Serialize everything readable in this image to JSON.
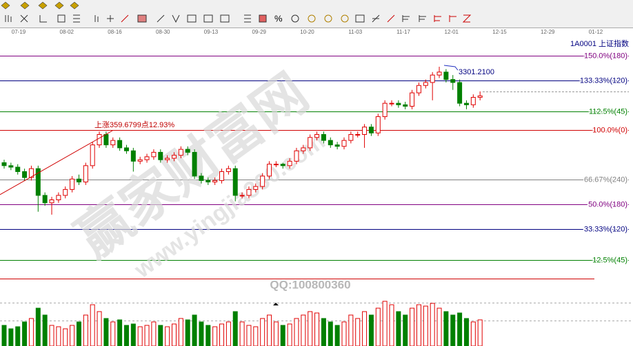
{
  "toolbar": {
    "percent": "%"
  },
  "chart_data": {
    "type": "candlestick",
    "symbol": "1A0001 上证指数",
    "date_labels": [
      "07-19",
      "08-02",
      "08-16",
      "08-30",
      "09-13",
      "09-29",
      "10-20",
      "11-03",
      "11-17",
      "12-01",
      "12-15",
      "12-29",
      "01-12"
    ],
    "ylim": [
      -11.6,
      165.3
    ],
    "up_color": "#e00000",
    "down_color": "#008000",
    "open": [
      78,
      76,
      75,
      72,
      68,
      74,
      56,
      51,
      53,
      56,
      60,
      67,
      65,
      76,
      90,
      97,
      90,
      93,
      88,
      86,
      79,
      80,
      82,
      85,
      80,
      81,
      83,
      87,
      85,
      69,
      66,
      65,
      66,
      72,
      74,
      56,
      56,
      60,
      62,
      69,
      77,
      77,
      76,
      79,
      86,
      88,
      95,
      97,
      93,
      90,
      89,
      93,
      97,
      97,
      102,
      98,
      109,
      118,
      118,
      117,
      116,
      125,
      130,
      132,
      137,
      139,
      134,
      132,
      118,
      117,
      122
    ],
    "high": [
      80,
      78,
      77,
      74,
      76,
      76,
      58,
      55,
      58,
      62,
      69,
      70,
      78,
      92,
      99,
      99,
      95,
      95,
      90,
      88,
      82,
      84,
      87,
      87,
      83,
      85,
      89,
      89,
      87,
      71,
      68,
      68,
      74,
      76,
      76,
      58,
      62,
      64,
      71,
      79,
      79,
      78,
      81,
      88,
      90,
      97,
      99,
      99,
      95,
      92,
      95,
      99,
      99,
      104,
      104,
      111,
      120,
      120,
      120,
      119,
      127,
      132,
      134,
      139,
      142.6,
      141,
      137,
      134,
      120,
      124,
      126
    ],
    "low": [
      74,
      73,
      70,
      66,
      66,
      45,
      49,
      43,
      51,
      54,
      58,
      63,
      63,
      74,
      88,
      88,
      88,
      86,
      84,
      72,
      77,
      78,
      80,
      78,
      78,
      79,
      81,
      83,
      67,
      64,
      63,
      63,
      64,
      70,
      52,
      54,
      54,
      58,
      60,
      67,
      75,
      74,
      74,
      77,
      84,
      86,
      93,
      91,
      88,
      87,
      87,
      91,
      95,
      88,
      96,
      96,
      107,
      116,
      115,
      114,
      114,
      123,
      128,
      120,
      135,
      132,
      127,
      116,
      114,
      115,
      120
    ],
    "close": [
      76,
      75,
      72,
      68,
      74,
      56,
      51,
      53,
      56,
      60,
      67,
      65,
      76,
      90,
      97,
      90,
      93,
      88,
      86,
      79,
      80,
      82,
      85,
      80,
      81,
      83,
      87,
      85,
      69,
      66,
      65,
      66,
      72,
      74,
      56,
      56,
      60,
      62,
      69,
      77,
      77,
      76,
      79,
      86,
      88,
      95,
      97,
      93,
      90,
      89,
      93,
      97,
      97,
      102,
      98,
      109,
      118,
      118,
      117,
      116,
      125,
      130,
      132,
      137,
      139,
      134,
      132,
      118,
      117,
      122,
      123
    ],
    "volume": [
      30,
      25,
      28,
      35,
      40,
      55,
      45,
      30,
      28,
      25,
      30,
      35,
      45,
      60,
      50,
      40,
      35,
      38,
      30,
      32,
      28,
      30,
      35,
      30,
      28,
      32,
      40,
      38,
      45,
      35,
      30,
      28,
      32,
      35,
      50,
      35,
      30,
      28,
      40,
      45,
      35,
      30,
      32,
      40,
      45,
      50,
      48,
      40,
      35,
      30,
      35,
      45,
      40,
      50,
      45,
      55,
      65,
      60,
      50,
      45,
      55,
      60,
      58,
      62,
      55,
      50,
      45,
      48,
      40,
      35,
      38
    ],
    "volume_ylim": [
      0,
      70
    ],
    "fib_levels": [
      {
        "value": 150,
        "label": "150.0%(180)",
        "color": "#800080"
      },
      {
        "value": 133.33,
        "label": "133.33%(120)",
        "color": "#000080"
      },
      {
        "value": 112.5,
        "label": "112.5%(45)",
        "color": "#008000"
      },
      {
        "value": 100,
        "label": "100.0%(0)",
        "color": "#d00000"
      },
      {
        "value": 66.67,
        "label": "66.67%(240)",
        "color": "#808080"
      },
      {
        "value": 50,
        "label": "50.0%(180)",
        "color": "#800080"
      },
      {
        "value": 33.33,
        "label": "33.33%(120)",
        "color": "#000080"
      },
      {
        "value": 12.5,
        "label": "12.5%(45)",
        "color": "#008000"
      },
      {
        "value": 0,
        "color": "#d00000"
      }
    ],
    "rise_label": "上涨359.6799点12.93%",
    "high_label": "3301.2100"
  },
  "watermark": {
    "cn": "赢家财富网",
    "url": "www.yingjia360.com",
    "qq": "QQ:100800360"
  }
}
